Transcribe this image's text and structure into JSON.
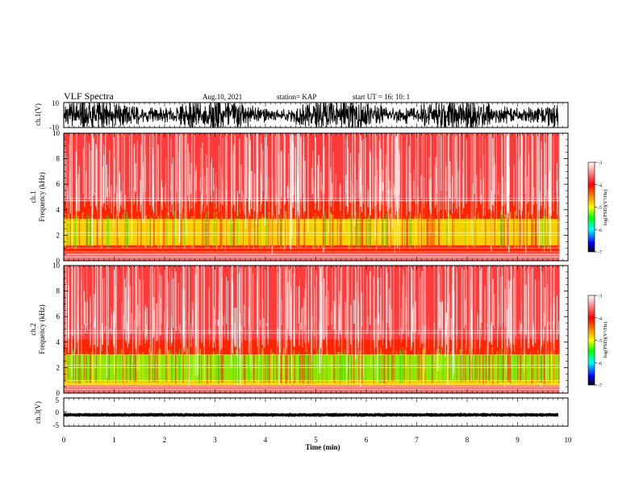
{
  "header": {
    "title": "VLF Spectra",
    "date": "Aug.10, 2021",
    "station": "station= KAP",
    "start": "start  UT =   16: 10: 1"
  },
  "colorbar": {
    "label": "log(PSD)(V²/Hz)",
    "ticks": [
      "-3",
      "-4",
      "-5",
      "-6",
      "-7"
    ],
    "stops": [
      "#ffffff",
      "#ff0000",
      "#ffff00",
      "#00ff00",
      "#00ffff",
      "#0000ff",
      "#000000"
    ]
  },
  "chart_data": [
    {
      "type": "line",
      "ylabel": "ch.1(V)",
      "ylim": [
        -10,
        10
      ],
      "yticks": [
        "10",
        "-10"
      ],
      "note": "noisy waveform mostly spanning -8 to 8 V"
    },
    {
      "type": "heatmap",
      "ylabel_top": "ch.1",
      "ylabel": "Frequency (kHz)",
      "ylim": [
        0,
        10
      ],
      "yticks": [
        "0",
        "2",
        "4",
        "6",
        "8",
        "10"
      ],
      "bands": [
        {
          "from": 0,
          "to": 0.6,
          "level": "mixed"
        },
        {
          "from": 0.6,
          "to": 1.2,
          "level": -4
        },
        {
          "from": 1.2,
          "to": 3.3,
          "level": -4.6
        },
        {
          "from": 3.3,
          "to": 4.7,
          "level": -3.9
        },
        {
          "from": 4.7,
          "to": 10,
          "level": -3.3
        }
      ]
    },
    {
      "type": "heatmap",
      "ylabel_top": "ch.2",
      "ylabel": "Frequency (kHz)",
      "ylim": [
        0,
        10
      ],
      "yticks": [
        "0",
        "2",
        "4",
        "6",
        "8",
        "10"
      ],
      "bands": [
        {
          "from": 0,
          "to": 0.6,
          "level": "mixed"
        },
        {
          "from": 0.6,
          "to": 1.0,
          "level": -4.2
        },
        {
          "from": 1.0,
          "to": 3.0,
          "level": -5.2
        },
        {
          "from": 3.0,
          "to": 4.2,
          "level": -4.0
        },
        {
          "from": 4.2,
          "to": 10,
          "level": -3.3
        }
      ]
    },
    {
      "type": "line",
      "ylabel": "ch.3(V)",
      "ylim": [
        -5,
        5
      ],
      "yticks": [
        "5",
        "0",
        "-5"
      ],
      "note": "narrow band near -1 V"
    }
  ],
  "xaxis": {
    "label": "Time  (min)",
    "ticks": [
      "0",
      "1",
      "2",
      "3",
      "4",
      "5",
      "6",
      "7",
      "8",
      "9",
      "10"
    ],
    "range": [
      0,
      10
    ],
    "data_end": 9.83
  }
}
